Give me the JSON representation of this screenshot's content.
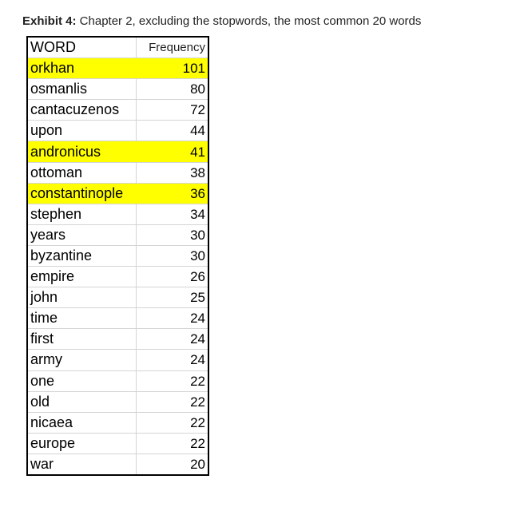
{
  "caption": {
    "lead": "Exhibit 4:",
    "text": " Chapter 2, excluding the stopwords, the most common 20 words"
  },
  "table": {
    "headers": {
      "word": "WORD",
      "frequency": "Frequency"
    },
    "highlight_color": "#ffff00",
    "rows": [
      {
        "word": "orkhan",
        "frequency": "101",
        "highlight": true
      },
      {
        "word": "osmanlis",
        "frequency": "80",
        "highlight": false
      },
      {
        "word": "cantacuzenos",
        "frequency": "72",
        "highlight": false
      },
      {
        "word": "upon",
        "frequency": "44",
        "highlight": false
      },
      {
        "word": "andronicus",
        "frequency": "41",
        "highlight": true
      },
      {
        "word": "ottoman",
        "frequency": "38",
        "highlight": false
      },
      {
        "word": "constantinople",
        "frequency": "36",
        "highlight": true
      },
      {
        "word": "stephen",
        "frequency": "34",
        "highlight": false
      },
      {
        "word": "years",
        "frequency": "30",
        "highlight": false
      },
      {
        "word": "byzantine",
        "frequency": "30",
        "highlight": false
      },
      {
        "word": "empire",
        "frequency": "26",
        "highlight": false
      },
      {
        "word": "john",
        "frequency": "25",
        "highlight": false
      },
      {
        "word": "time",
        "frequency": "24",
        "highlight": false
      },
      {
        "word": "first",
        "frequency": "24",
        "highlight": false
      },
      {
        "word": "army",
        "frequency": "24",
        "highlight": false
      },
      {
        "word": "one",
        "frequency": "22",
        "highlight": false
      },
      {
        "word": "old",
        "frequency": "22",
        "highlight": false
      },
      {
        "word": "nicaea",
        "frequency": "22",
        "highlight": false
      },
      {
        "word": "europe",
        "frequency": "22",
        "highlight": false
      },
      {
        "word": "war",
        "frequency": "20",
        "highlight": false
      }
    ]
  }
}
